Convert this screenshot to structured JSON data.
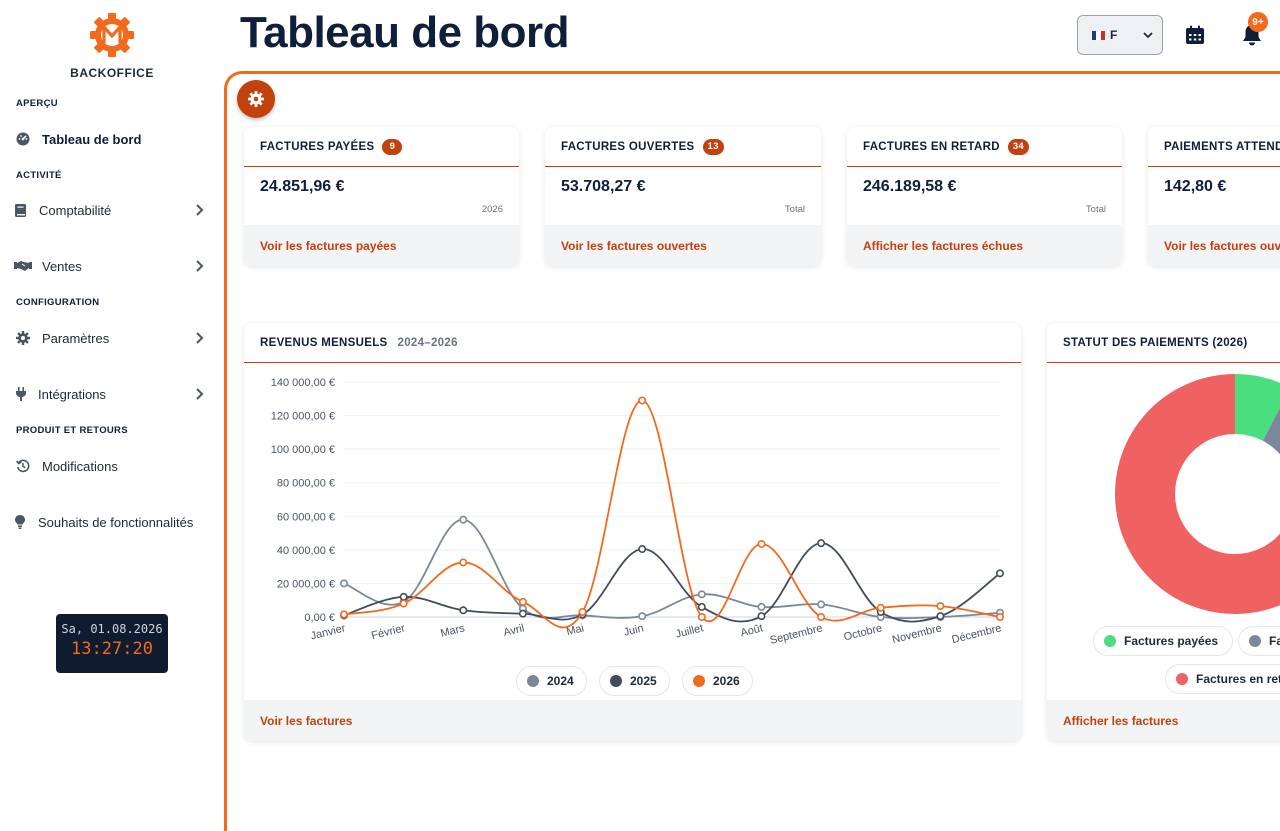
{
  "sidebar": {
    "brand": "BACKOFFICE",
    "sections": {
      "apercu": "APERÇU",
      "activite": "ACTIVITÉ",
      "configuration": "CONFIGURATION",
      "produit": "PRODUIT ET RETOURS"
    },
    "items": {
      "dashboard": "Tableau de bord",
      "accounting": "Comptabilité",
      "sales": "Ventes",
      "settings": "Paramètres",
      "integrations": "Intégrations",
      "changes": "Modifications",
      "wishes": "Souhaits de fonctionnalités"
    },
    "clock": {
      "date": "Sa, 01.08.2026",
      "time": "13:27:20"
    }
  },
  "header": {
    "title": "Tableau de bord",
    "language": "F",
    "notifications": "9+"
  },
  "cards": [
    {
      "title": "FACTURES PAYÉES",
      "count": "9",
      "amount": "24.851,96 €",
      "sub": "2026",
      "link": "Voir les factures payées"
    },
    {
      "title": "FACTURES OUVERTES",
      "count": "13",
      "amount": "53.708,27 €",
      "sub": "Total",
      "link": "Voir les factures ouvertes"
    },
    {
      "title": "FACTURES EN RETARD",
      "count": "34",
      "amount": "246.189,58 €",
      "sub": "Total",
      "link": "Afficher les factures échues"
    },
    {
      "title": "PAIEMENTS ATTENDUS",
      "count": "",
      "amount": "142,80 €",
      "sub": "",
      "link": "Voir les factures ouvertes"
    }
  ],
  "revenue": {
    "title": "REVENUS MENSUELS",
    "years": "2024–2026",
    "link": "Voir les factures"
  },
  "status": {
    "title": "STATUT DES PAIEMENTS (2026)",
    "legend": [
      "Factures payées",
      "Factures ouvertes",
      "Factures en retard"
    ],
    "link": "Afficher les factures"
  },
  "colors": {
    "accent": "#f26a1b",
    "accentDark": "#c2410c",
    "navy": "#0f1e3a",
    "s2024": "#7c8799",
    "s2025": "#434c5c",
    "s2026": "#f26a1b",
    "paid": "#4ade80",
    "open": "#7c8799",
    "late": "#f06262"
  },
  "chart_data": [
    {
      "type": "line",
      "title": "REVENUS MENSUELS",
      "categories": [
        "Janvier",
        "Février",
        "Mars",
        "Avril",
        "Mai",
        "Juin",
        "Juillet",
        "Août",
        "Septembre",
        "Octobre",
        "Novembre",
        "Décembre"
      ],
      "ylim": [
        0,
        140000
      ],
      "yticks": [
        "0,00 €",
        "20 000,00 €",
        "40 000,00 €",
        "60 000,00 €",
        "80 000,00 €",
        "100 000,00 €",
        "120 000,00 €",
        "140 000,00 €"
      ],
      "grid": true,
      "legend": "bottom",
      "series": [
        {
          "name": "2024",
          "values": [
            20000,
            9000,
            58000,
            5000,
            1000,
            500,
            13500,
            6000,
            7500,
            0,
            0,
            2500
          ]
        },
        {
          "name": "2025",
          "values": [
            1000,
            12000,
            4000,
            2000,
            1500,
            40500,
            6000,
            500,
            44000,
            3000,
            500,
            26000
          ]
        },
        {
          "name": "2026",
          "values": [
            1500,
            8000,
            32500,
            9000,
            3000,
            129000,
            0,
            43500,
            0,
            5500,
            6500,
            0
          ]
        }
      ]
    },
    {
      "type": "pie",
      "title": "STATUT DES PAIEMENTS (2026)",
      "categories": [
        "Factures payées",
        "Factures ouvertes",
        "Factures en retard"
      ],
      "values": [
        24851.96,
        53708.27,
        246189.58
      ]
    }
  ]
}
